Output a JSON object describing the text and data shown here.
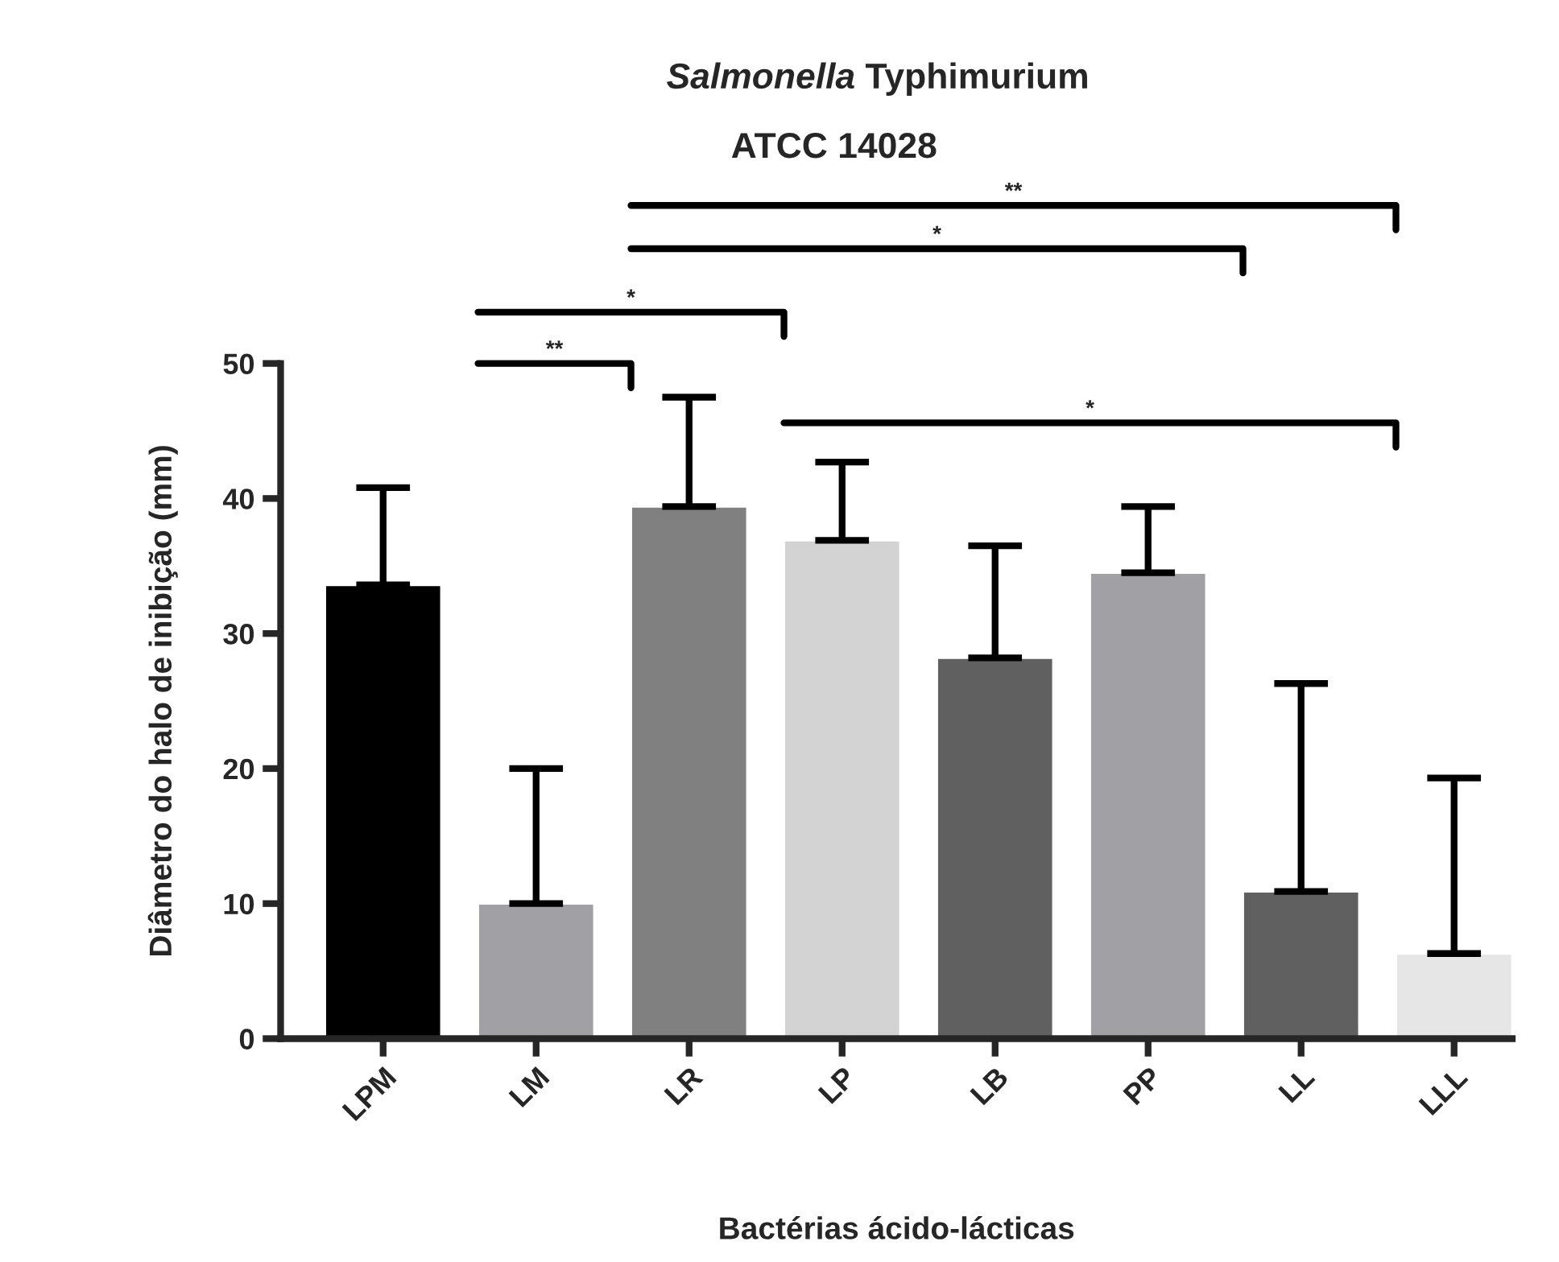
{
  "chart_data": {
    "type": "bar",
    "title": "Salmonella Typhimurium\nATCC 14028",
    "xlabel": "Bactérias ácido-lácticas",
    "ylabel": "Diâmetro do halo de inibição (mm)",
    "categories": [
      "LPM",
      "LM",
      "LR",
      "LP",
      "LB",
      "PP",
      "LL",
      "LLL"
    ],
    "values": [
      33.6,
      10.0,
      39.4,
      36.9,
      28.2,
      34.5,
      10.9,
      6.3
    ],
    "errors": [
      [
        33.6,
        40.8
      ],
      [
        10.0,
        20.0
      ],
      [
        39.4,
        47.5
      ],
      [
        36.9,
        42.7
      ],
      [
        28.2,
        36.5
      ],
      [
        34.5,
        39.4
      ],
      [
        10.9,
        26.3
      ],
      [
        6.3,
        19.3
      ]
    ],
    "colors": [
      "#000000",
      "#a0a0a5",
      "#808080",
      "#d3d3d3",
      "#606060",
      "#a0a0a5",
      "#606060",
      "#e6e6e6"
    ],
    "ylim": [
      0,
      50
    ],
    "yticks": [
      0,
      10,
      20,
      30,
      40,
      50
    ],
    "grid": false,
    "legend": false,
    "annotations": [
      "**",
      "*",
      "**",
      "*",
      "*"
    ]
  }
}
